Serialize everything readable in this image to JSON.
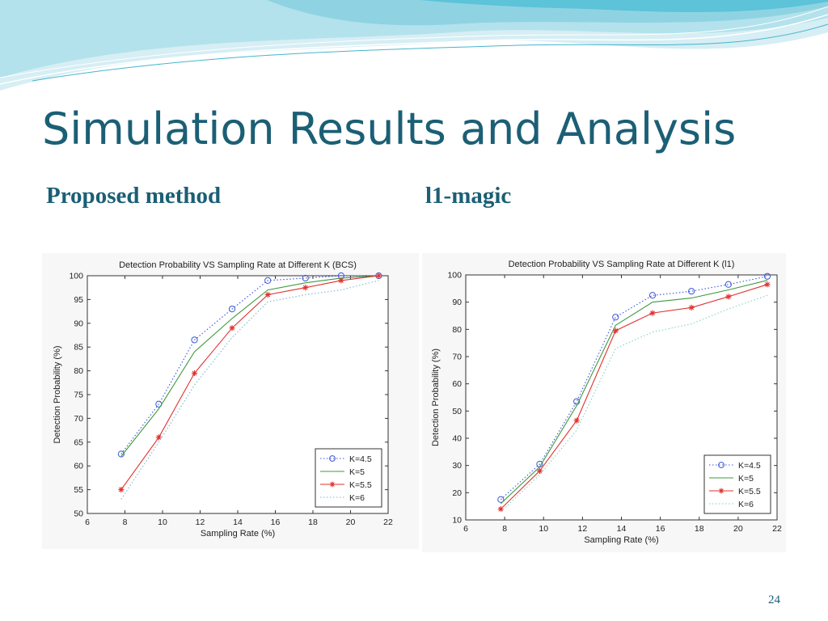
{
  "slide": {
    "title": "Simulation Results and Analysis",
    "subhead_left": "Proposed method",
    "subhead_right": "l1-magic",
    "page_number": "24",
    "colors": {
      "title": "#1b5f75",
      "banner_light": "#d6eef4",
      "banner_mid": "#8fd3e2",
      "banner_dark": "#45b5cc"
    }
  },
  "chart_data": [
    {
      "type": "line",
      "title": "Detection Probability VS Sampling Rate at Different K (BCS)",
      "xlabel": "Sampling Rate (%)",
      "ylabel": "Detection Probability (%)",
      "xlim": [
        6,
        22
      ],
      "ylim": [
        50,
        100
      ],
      "xticks": [
        6,
        8,
        10,
        12,
        14,
        16,
        18,
        20,
        22
      ],
      "yticks": [
        50,
        55,
        60,
        65,
        70,
        75,
        80,
        85,
        90,
        95,
        100
      ],
      "grid": false,
      "legend": "bottom-right",
      "x": [
        7.8,
        9.8,
        11.7,
        13.7,
        15.6,
        17.6,
        19.5,
        21.5
      ],
      "series": [
        {
          "name": "K=4.5",
          "style": "dotted",
          "marker": "circle",
          "color": "#3a55d8",
          "values": [
            62.5,
            73,
            86.5,
            93,
            99,
            99.5,
            100,
            100
          ]
        },
        {
          "name": "K=5",
          "style": "solid",
          "marker": "none",
          "color": "#3f9a3f",
          "values": [
            62,
            72,
            84,
            91,
            97,
            98.5,
            99.5,
            100
          ]
        },
        {
          "name": "K=5.5",
          "style": "solid",
          "marker": "star",
          "color": "#e0302e",
          "values": [
            55,
            66,
            79.5,
            89,
            96,
            97.5,
            99,
            100
          ]
        },
        {
          "name": "K=6",
          "style": "dotted",
          "marker": "none",
          "color": "#7fb3d0",
          "values": [
            53,
            65,
            77,
            87,
            94.5,
            96,
            97,
            99
          ]
        }
      ]
    },
    {
      "type": "line",
      "title": "Detection Probability VS Sampling Rate at Different K (l1)",
      "xlabel": "Sampling Rate (%)",
      "ylabel": "Detection Probability (%)",
      "xlim": [
        6,
        22
      ],
      "ylim": [
        10,
        100
      ],
      "xticks": [
        6,
        8,
        10,
        12,
        14,
        16,
        18,
        20,
        22
      ],
      "yticks": [
        10,
        20,
        30,
        40,
        50,
        60,
        70,
        80,
        90,
        100
      ],
      "grid": false,
      "legend": "bottom-right",
      "x": [
        7.8,
        9.8,
        11.7,
        13.7,
        15.6,
        17.6,
        19.5,
        21.5
      ],
      "series": [
        {
          "name": "K=4.5",
          "style": "dotted",
          "marker": "circle",
          "color": "#3a55d8",
          "values": [
            17.5,
            30.5,
            53.5,
            84.5,
            92.5,
            94,
            96.5,
            99.5
          ]
        },
        {
          "name": "K=5",
          "style": "solid",
          "marker": "none",
          "color": "#3f9a3f",
          "values": [
            16,
            29.5,
            52,
            81.5,
            90,
            91.5,
            94.5,
            98
          ]
        },
        {
          "name": "K=5.5",
          "style": "solid",
          "marker": "star",
          "color": "#e0302e",
          "values": [
            14,
            28,
            46.5,
            79.5,
            86,
            88,
            92,
            96.5
          ]
        },
        {
          "name": "K=6",
          "style": "dotted",
          "marker": "none",
          "color": "#7fd3c6",
          "values": [
            13,
            26.5,
            43,
            73,
            79,
            82,
            87.5,
            92.5
          ]
        }
      ]
    }
  ]
}
